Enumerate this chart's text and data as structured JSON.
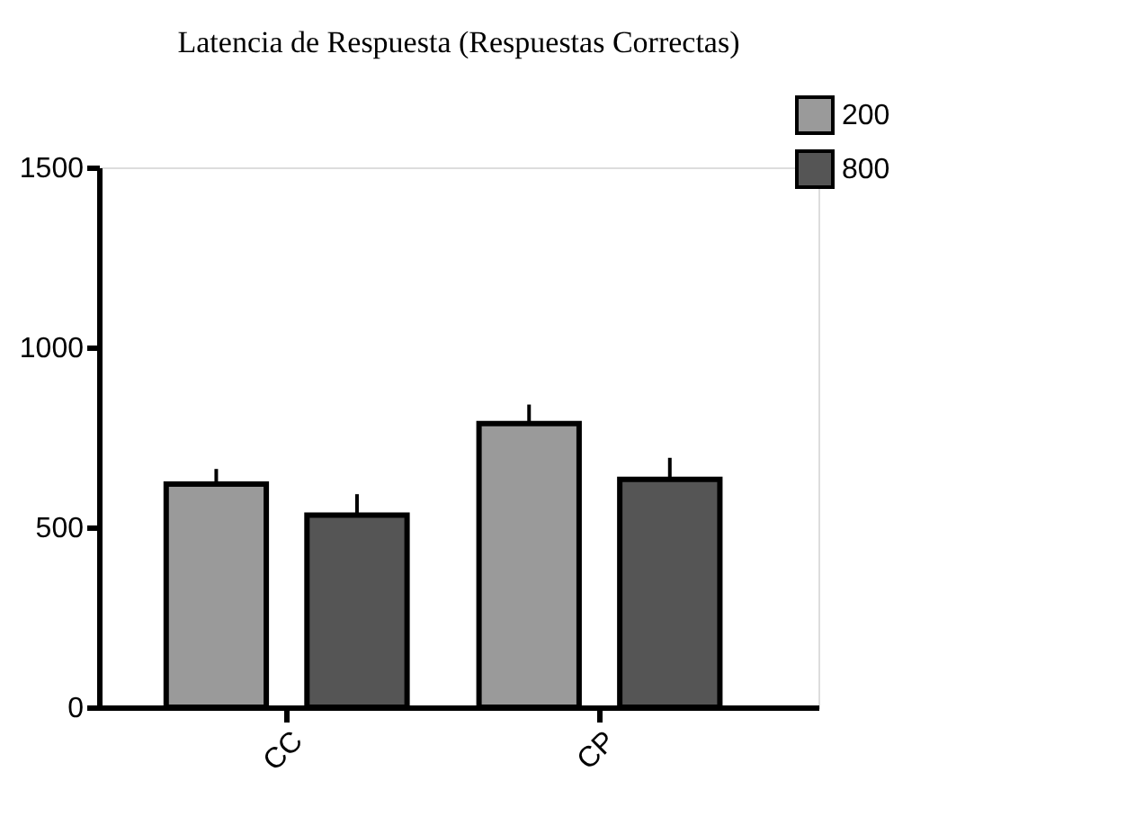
{
  "chart_data": {
    "type": "bar",
    "title": "Latencia de Respuesta  (Respuestas Correctas)",
    "categories": [
      "CC",
      "CP"
    ],
    "series": [
      {
        "name": "200",
        "color": "#9a9a9a",
        "values": [
          620,
          788
        ],
        "errors": [
          [
            620,
            662
          ],
          [
            788,
            841
          ]
        ]
      },
      {
        "name": "800",
        "color": "#555555",
        "values": [
          534,
          633
        ],
        "errors": [
          [
            534,
            592
          ],
          [
            633,
            693
          ]
        ]
      }
    ],
    "ylim": [
      0,
      1500
    ],
    "yticks": [
      0,
      500,
      1000,
      1500
    ],
    "grid": false,
    "legend": "top right"
  }
}
